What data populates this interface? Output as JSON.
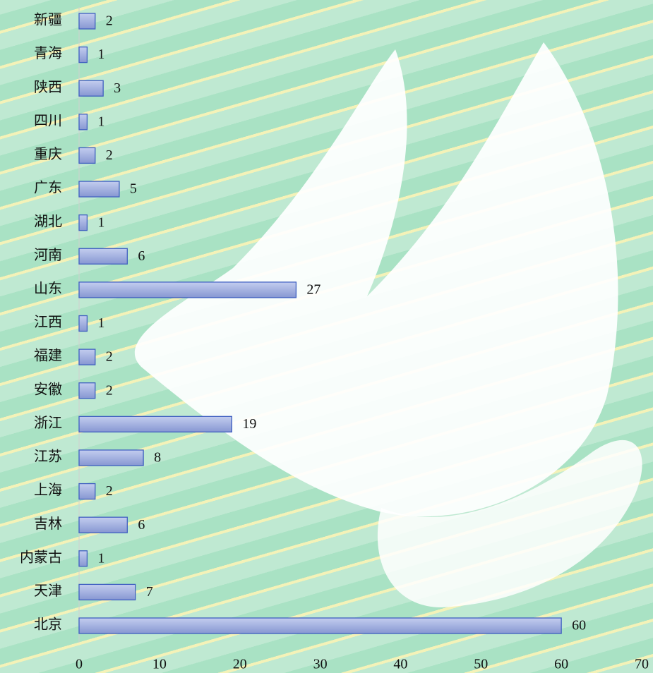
{
  "chart_data": {
    "type": "bar",
    "orientation": "horizontal",
    "categories": [
      "新疆",
      "青海",
      "陕西",
      "四川",
      "重庆",
      "广东",
      "湖北",
      "河南",
      "山东",
      "江西",
      "福建",
      "安徽",
      "浙江",
      "江苏",
      "上海",
      "吉林",
      "内蒙古",
      "天津",
      "北京"
    ],
    "values": [
      2,
      1,
      3,
      1,
      2,
      5,
      1,
      6,
      27,
      1,
      2,
      2,
      19,
      8,
      2,
      6,
      1,
      7,
      60
    ],
    "color": "#9aa8dc",
    "edgecolor": "#3f5fc0",
    "xlim": [
      0,
      70
    ],
    "xticks": [
      0,
      10,
      20,
      30,
      40,
      50,
      60,
      70
    ],
    "grid": false
  }
}
